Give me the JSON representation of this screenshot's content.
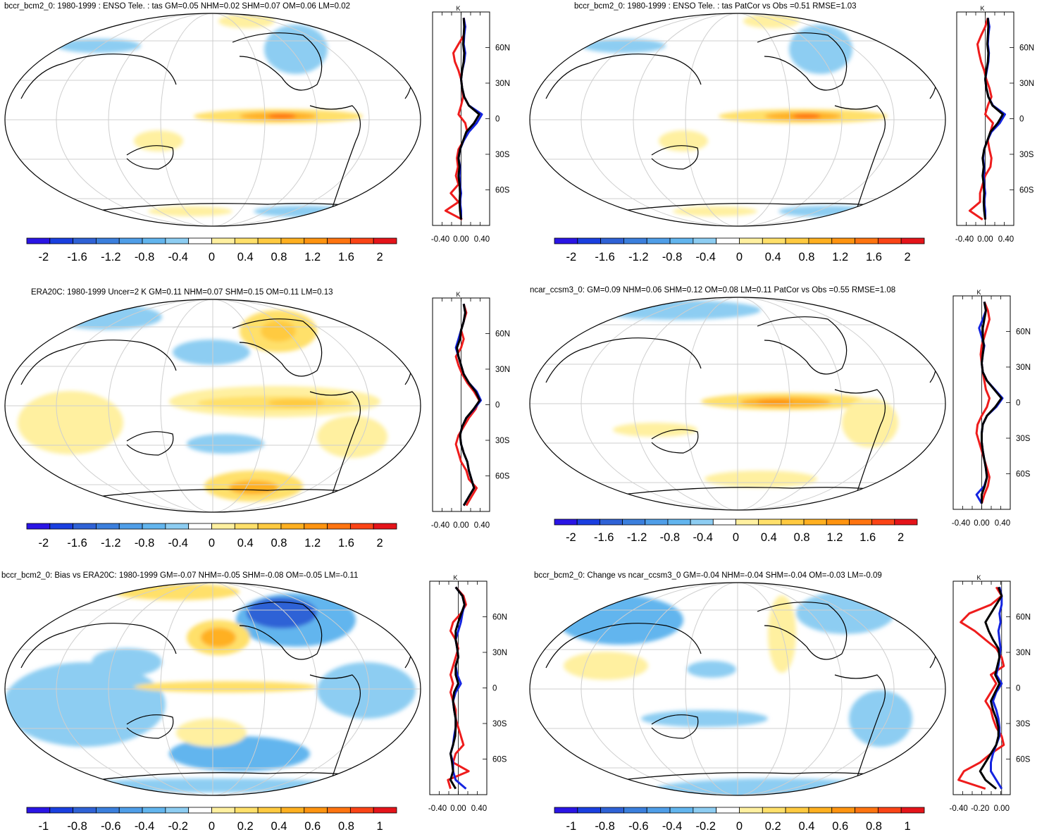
{
  "chart_data": [
    {
      "type": "heatmap",
      "title": "bccr_bcm2_0: 1980-1999 : ENSO Tele. : tas GM=0.05 NHM=0.02 SHM=0.07 OM=0.06 LM=0.02",
      "colorbar": {
        "labels": [
          "-2",
          "-1.6",
          "-1.2",
          "-0.8",
          "-0.4",
          "0",
          "0.4",
          "0.8",
          "1.2",
          "1.6",
          "2"
        ],
        "range": [
          -2.2,
          2.2
        ]
      },
      "zonal_profile": {
        "unit": "K",
        "x_ticks": [
          "-0.40",
          "0.00",
          "0.40"
        ],
        "x_range": [
          -0.55,
          0.55
        ],
        "lat_ticks": [
          "60N",
          "30N",
          "0",
          "30S",
          "60S"
        ],
        "series": [
          {
            "name": "red",
            "values": [
              0.05,
              0.08,
              0.05,
              -0.05,
              -0.15,
              -0.12,
              -0.05,
              0.0,
              0.02,
              0.04,
              0.0,
              -0.05,
              0.08,
              0.12,
              0.05,
              -0.05,
              -0.08,
              -0.06,
              -0.1,
              -0.05,
              -0.2,
              -0.05,
              -0.3,
              0.02
            ]
          },
          {
            "name": "blue",
            "values": [
              0.05,
              0.08,
              0.06,
              0.05,
              0.08,
              0.06,
              0.02,
              0.0,
              0.02,
              0.06,
              0.15,
              0.4,
              0.3,
              0.15,
              0.05,
              -0.02,
              -0.05,
              -0.02,
              -0.03,
              -0.02,
              0.0,
              -0.02,
              0.0,
              0.0
            ]
          },
          {
            "name": "black",
            "values": [
              0.05,
              0.06,
              0.05,
              0.04,
              0.06,
              0.05,
              0.02,
              0.0,
              0.02,
              0.06,
              0.15,
              0.35,
              0.25,
              0.1,
              0.04,
              -0.02,
              -0.05,
              -0.03,
              -0.05,
              -0.03,
              -0.02,
              -0.03,
              -0.02,
              0.0
            ]
          }
        ]
      }
    },
    {
      "type": "heatmap",
      "title": "bccr_bcm2_0: 1980-1999 : ENSO Tele. : tas PatCor vs Obs =0.51 RMSE=1.03",
      "colorbar": {
        "labels": [
          "-2",
          "-1.6",
          "-1.2",
          "-0.8",
          "-0.4",
          "0",
          "0.4",
          "0.8",
          "1.2",
          "1.6",
          "2"
        ],
        "range": [
          -2.2,
          2.2
        ]
      },
      "zonal_profile": {
        "unit": "K",
        "x_ticks": [
          "-0.40",
          "0.00",
          "0.40"
        ],
        "x_range": [
          -0.55,
          0.55
        ],
        "lat_ticks": [
          "60N",
          "30N",
          "0",
          "30S",
          "60S"
        ],
        "series": [
          {
            "name": "red",
            "values": [
              0.05,
              0.0,
              -0.08,
              -0.15,
              -0.12,
              -0.08,
              -0.02,
              0.02,
              0.08,
              0.12,
              0.05,
              0.0,
              0.15,
              0.1,
              0.05,
              0.08,
              0.12,
              0.1,
              0.0,
              -0.05,
              -0.1,
              -0.1,
              -0.3,
              -0.05
            ]
          },
          {
            "name": "blue",
            "values": [
              0.05,
              0.08,
              0.06,
              0.05,
              0.07,
              0.06,
              0.03,
              0.0,
              0.02,
              0.06,
              0.15,
              0.38,
              0.28,
              0.12,
              0.04,
              -0.02,
              -0.04,
              -0.02,
              -0.03,
              -0.02,
              0.0,
              -0.02,
              0.0,
              0.0
            ]
          },
          {
            "name": "black",
            "values": [
              0.05,
              0.06,
              0.05,
              0.04,
              0.06,
              0.05,
              0.02,
              0.0,
              0.02,
              0.06,
              0.14,
              0.34,
              0.24,
              0.1,
              0.04,
              -0.02,
              -0.05,
              -0.03,
              -0.05,
              -0.03,
              -0.02,
              -0.03,
              -0.02,
              0.0
            ]
          }
        ]
      }
    },
    {
      "type": "heatmap",
      "title": "ERA20C: 1980-1999 Uncer=2 K GM=0.11 NHM=0.07 SHM=0.15 OM=0.11 LM=0.13",
      "colorbar": {
        "labels": [
          "-2",
          "-1.6",
          "-1.2",
          "-0.8",
          "-0.4",
          "0",
          "0.4",
          "0.8",
          "1.2",
          "1.6",
          "2"
        ],
        "range": [
          -2.2,
          2.2
        ]
      },
      "zonal_profile": {
        "unit": "K",
        "x_ticks": [
          "-0.40",
          "0.00",
          "0.40"
        ],
        "x_range": [
          -0.55,
          0.55
        ],
        "lat_ticks": [
          "60N",
          "30N",
          "0",
          "30S",
          "60S"
        ],
        "series": [
          {
            "name": "red",
            "values": [
              0.05,
              0.1,
              0.05,
              0.0,
              0.05,
              0.0,
              -0.1,
              -0.05,
              0.02,
              0.12,
              0.25,
              0.35,
              0.28,
              0.15,
              0.05,
              -0.05,
              -0.1,
              -0.05,
              0.0,
              0.1,
              0.15,
              0.3,
              0.2,
              0.1
            ]
          },
          {
            "name": "blue",
            "values": [
              0.05,
              0.08,
              0.05,
              0.0,
              -0.05,
              -0.1,
              -0.05,
              0.0,
              0.05,
              0.15,
              0.3,
              0.38,
              0.25,
              0.1,
              0.02,
              -0.02,
              0.0,
              0.05,
              0.12,
              0.15,
              0.2,
              0.25,
              0.15,
              0.05
            ]
          },
          {
            "name": "black",
            "values": [
              0.05,
              0.08,
              0.05,
              0.0,
              -0.02,
              -0.08,
              -0.05,
              0.0,
              0.05,
              0.15,
              0.28,
              0.36,
              0.24,
              0.1,
              0.02,
              -0.02,
              0.0,
              0.05,
              0.12,
              0.15,
              0.2,
              0.25,
              0.15,
              0.05
            ]
          }
        ]
      }
    },
    {
      "type": "heatmap",
      "title": "ncar_ccsm3_0: GM=0.09 NHM=0.06 SHM=0.12 OM=0.08 LM=0.11 PatCor vs Obs =0.55 RMSE=1.08",
      "colorbar": {
        "labels": [
          "-2",
          "-1.6",
          "-1.2",
          "-0.8",
          "-0.4",
          "0",
          "0.4",
          "0.8",
          "1.2",
          "1.6",
          "2"
        ],
        "range": [
          -2.2,
          2.2
        ]
      },
      "zonal_profile": {
        "unit": "K",
        "x_ticks": [
          "-0.40",
          "0.00",
          "0.40"
        ],
        "x_range": [
          -0.55,
          0.55
        ],
        "lat_ticks": [
          "60N",
          "30N",
          "0",
          "30S",
          "60S"
        ],
        "series": [
          {
            "name": "red",
            "values": [
              0.05,
              0.12,
              0.15,
              0.1,
              0.05,
              0.0,
              -0.02,
              0.0,
              0.02,
              0.05,
              0.08,
              0.15,
              0.1,
              0.0,
              -0.08,
              -0.1,
              -0.05,
              0.0,
              0.05,
              0.1,
              0.15,
              0.12,
              0.05,
              0.0
            ]
          },
          {
            "name": "blue",
            "values": [
              0.05,
              0.08,
              0.02,
              -0.05,
              0.0,
              0.05,
              0.02,
              0.0,
              0.02,
              0.1,
              0.25,
              0.4,
              0.28,
              0.1,
              0.02,
              0.0,
              0.0,
              0.02,
              0.05,
              0.08,
              0.1,
              0.05,
              -0.1,
              0.0
            ]
          },
          {
            "name": "black",
            "values": [
              0.05,
              0.08,
              0.05,
              0.02,
              0.02,
              0.04,
              0.02,
              0.0,
              0.02,
              0.1,
              0.24,
              0.38,
              0.26,
              0.1,
              0.02,
              0.0,
              0.0,
              0.02,
              0.05,
              0.08,
              0.1,
              0.06,
              0.0,
              0.0
            ]
          }
        ]
      }
    },
    {
      "type": "heatmap",
      "title": "bccr_bcm2_0: Bias vs ERA20C: 1980-1999 GM=-0.07 NHM=-0.05 SHM=-0.08 OM=-0.05 LM=-0.11",
      "colorbar": {
        "labels": [
          "-1",
          "-0.8",
          "-0.6",
          "-0.4",
          "-0.2",
          "0",
          "0.2",
          "0.4",
          "0.6",
          "0.8",
          "1"
        ],
        "range": [
          -1.1,
          1.1
        ]
      },
      "zonal_profile": {
        "unit": "K",
        "x_ticks": [
          "-0.40",
          "0.00",
          "0.40"
        ],
        "x_range": [
          -0.55,
          0.55
        ],
        "lat_ticks": [
          "60N",
          "30N",
          "0",
          "30S",
          "60S"
        ],
        "series": [
          {
            "name": "red",
            "values": [
              -0.05,
              0.1,
              0.15,
              0.05,
              -0.1,
              -0.15,
              -0.05,
              0.0,
              -0.05,
              -0.1,
              -0.15,
              -0.1,
              -0.15,
              -0.1,
              -0.05,
              -0.05,
              0.0,
              0.05,
              0.1,
              -0.05,
              -0.1,
              0.2,
              -0.2,
              -0.15
            ]
          },
          {
            "name": "blue",
            "values": [
              -0.05,
              0.08,
              0.12,
              0.08,
              0.05,
              0.0,
              -0.05,
              -0.02,
              0.0,
              -0.05,
              -0.02,
              0.05,
              -0.05,
              -0.1,
              -0.08,
              -0.05,
              -0.05,
              -0.08,
              -0.1,
              -0.15,
              -0.1,
              -0.1,
              -0.05,
              0.15
            ]
          },
          {
            "name": "black",
            "values": [
              -0.05,
              0.08,
              0.12,
              0.06,
              0.0,
              -0.05,
              -0.05,
              -0.02,
              0.0,
              -0.05,
              -0.05,
              0.0,
              -0.08,
              -0.1,
              -0.08,
              -0.05,
              -0.05,
              -0.06,
              -0.1,
              -0.15,
              -0.12,
              -0.1,
              -0.15,
              -0.05
            ]
          }
        ]
      }
    },
    {
      "type": "heatmap",
      "title": "bccr_bcm2_0: Change vs ncar_ccsm3_0 GM=-0.04 NHM=-0.04 SHM=-0.04 OM=-0.03 LM=-0.09",
      "colorbar": {
        "labels": [
          "-1",
          "-0.8",
          "-0.6",
          "-0.4",
          "-0.2",
          "0",
          "0.2",
          "0.4",
          "0.6",
          "0.8",
          "1"
        ],
        "range": [
          -1.1,
          1.1
        ]
      },
      "zonal_profile": {
        "unit": "K",
        "x_ticks": [
          "-0.40",
          "-0.20",
          "0.00"
        ],
        "x_range": [
          -0.45,
          0.08
        ],
        "lat_ticks": [
          "60N",
          "30N",
          "0",
          "30S",
          "60S"
        ],
        "series": [
          {
            "name": "red",
            "values": [
              -0.05,
              0.0,
              -0.1,
              -0.3,
              -0.38,
              -0.25,
              -0.15,
              -0.05,
              0.0,
              0.02,
              -0.1,
              -0.05,
              -0.1,
              -0.15,
              -0.1,
              -0.08,
              -0.05,
              0.0,
              0.02,
              -0.1,
              -0.2,
              -0.35,
              -0.4,
              -0.15
            ]
          },
          {
            "name": "blue",
            "values": [
              -0.02,
              0.0,
              0.0,
              -0.02,
              -0.01,
              -0.03,
              -0.02,
              -0.01,
              -0.02,
              -0.03,
              -0.05,
              0.0,
              -0.05,
              -0.08,
              -0.05,
              -0.03,
              -0.02,
              -0.02,
              -0.05,
              -0.08,
              -0.1,
              -0.1,
              -0.05,
              0.0
            ]
          },
          {
            "name": "black",
            "values": [
              -0.03,
              0.0,
              -0.05,
              -0.1,
              -0.15,
              -0.12,
              -0.08,
              -0.03,
              -0.02,
              -0.04,
              -0.06,
              -0.02,
              -0.06,
              -0.1,
              -0.08,
              -0.05,
              -0.03,
              -0.03,
              -0.05,
              -0.1,
              -0.15,
              -0.2,
              -0.15,
              -0.05
            ]
          }
        ]
      }
    }
  ],
  "colors": {
    "palette": [
      "#2a15e5",
      "#1a3fe0",
      "#2f62d6",
      "#3b7fdd",
      "#4f9ee8",
      "#62b5ee",
      "#8dcdf2",
      "#ffffff",
      "#fff0a0",
      "#ffe06a",
      "#ffca40",
      "#ffb020",
      "#ff9410",
      "#ff7410",
      "#fb4416",
      "#e5141a"
    ],
    "series_red": "#ee1c1c",
    "series_blue": "#1424e0",
    "series_black": "#000000"
  }
}
